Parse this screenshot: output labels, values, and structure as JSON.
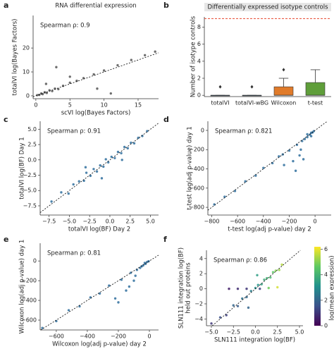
{
  "chart_data": [
    {
      "type": "scatter",
      "panel": "a",
      "title": "RNA differential expression",
      "annotation": "Spearman ρ: 0.9",
      "xlabel": "scVI log(Bayes Factors)",
      "ylabel": "totalVI log(Bayes Factors)",
      "color": "#555555",
      "diagonal": true,
      "x": [
        0.2,
        0.5,
        0.8,
        1,
        1.3,
        1.6,
        2,
        2.4,
        2.8,
        3.3,
        4,
        5,
        6,
        7,
        8.5,
        10,
        12,
        14,
        16,
        17.5,
        3,
        5,
        1.5,
        9,
        11
      ],
      "values": [
        0.3,
        0.4,
        1,
        0.7,
        1.5,
        1.2,
        2.3,
        2.0,
        3,
        2.8,
        4.2,
        5.5,
        6.3,
        7.4,
        9,
        10.6,
        12.8,
        15,
        17,
        18.5,
        12,
        8,
        5,
        3,
        1
      ],
      "xlim": [
        -0.4,
        18
      ],
      "xticks": [
        0,
        5,
        10,
        15
      ],
      "ylim": [
        -1.2,
        33.6
      ],
      "yticks": [
        0,
        10,
        20
      ]
    },
    {
      "type": "box",
      "panel": "b",
      "title": "Differentially expressed isotype controls",
      "ylabel": "Number of isotype controls",
      "categories": [
        "totalVI",
        "totalVI-wBG",
        "Wilcoxon",
        "t-test"
      ],
      "colors": [
        "#3a75b0",
        "#3a75b0",
        "#e07b2a",
        "#5f9e3a"
      ],
      "boxes": [
        {
          "min": 0,
          "q1": 0,
          "median": 0,
          "q3": 0,
          "max": 0,
          "outliers": [
            1
          ]
        },
        {
          "min": 0,
          "q1": 0,
          "median": 0,
          "q3": 0,
          "max": 0,
          "outliers": [
            1
          ]
        },
        {
          "min": 0,
          "q1": 0,
          "median": 0,
          "q3": 1,
          "max": 2,
          "outliers": [
            3
          ]
        },
        {
          "min": 0,
          "q1": 0,
          "median": 0,
          "q3": 1.5,
          "max": 3,
          "outliers": []
        }
      ],
      "reference_line": {
        "value": 9,
        "color": "#e8452c"
      },
      "ylim": [
        -0.15,
        9.2
      ],
      "yticks": [
        0,
        2,
        4,
        6,
        8
      ]
    },
    {
      "type": "scatter",
      "panel": "c",
      "annotation": "Spearman ρ: 0.91",
      "xlabel": "totalVI log(BF) Day 2",
      "ylabel": "totalVI log(BF) Day 1",
      "color": "#2f6e9e",
      "diagonal": true,
      "x": [
        -7.2,
        -6,
        -5.1,
        -4.5,
        -3.8,
        -3.2,
        -2.9,
        -2.4,
        -2,
        -1.6,
        -1.2,
        -0.8,
        -0.5,
        -0.2,
        0.2,
        0.6,
        1,
        1.4,
        1.8,
        2.2,
        2.6,
        3,
        3.5,
        4,
        4.6,
        -3,
        -1,
        1.5
      ],
      "values": [
        -6.8,
        -5.3,
        -5.5,
        -4,
        -3.5,
        -3.4,
        -2.1,
        -2.6,
        -1.5,
        -1.9,
        -0.9,
        -1.1,
        0.1,
        -0.4,
        0.5,
        0.3,
        1.3,
        1.1,
        2.1,
        1.9,
        2.8,
        2.7,
        3.6,
        3.9,
        4.7,
        -1.2,
        -3,
        0
      ],
      "xlim": [
        -8.6,
        6
      ],
      "xticks": [
        {
          "value": -7.5,
          "label": "−7.5"
        },
        {
          "value": -5,
          "label": "−5.0"
        },
        {
          "value": -2.5,
          "label": "−2.5"
        },
        {
          "value": 0,
          "label": "0.0"
        },
        {
          "value": 2.5,
          "label": "2.5"
        },
        {
          "value": 5,
          "label": "5.0"
        }
      ],
      "ylim": [
        -9,
        6.3
      ],
      "yticks": [
        {
          "value": 5,
          "label": "5.0"
        },
        {
          "value": 2.5,
          "label": "2.5"
        },
        {
          "value": 0,
          "label": "0.0"
        },
        {
          "value": -2.5,
          "label": "−2.5"
        },
        {
          "value": -5,
          "label": "−5.0"
        },
        {
          "value": -7.5,
          "label": "−7.5"
        }
      ]
    },
    {
      "type": "scatter",
      "panel": "d",
      "annotation": "Spearman ρ: 0.821",
      "xlabel": "t-test log(adj p-value) day 2",
      "ylabel": "t-test log(adj p-value) day 1",
      "color": "#2f6e9e",
      "diagonal": true,
      "x": [
        -780,
        -700,
        -620,
        -540,
        -460,
        -400,
        -330,
        -280,
        -240,
        -200,
        -170,
        -140,
        -120,
        -100,
        -80,
        -60,
        -40,
        -30,
        -20,
        -10,
        -150,
        -110,
        -90,
        -250,
        -60,
        -30
      ],
      "values": [
        -770,
        -690,
        -630,
        -530,
        -470,
        -390,
        -340,
        -270,
        -360,
        -210,
        -320,
        -150,
        -260,
        -110,
        -90,
        -70,
        -45,
        -25,
        -22,
        -8,
        -420,
        -200,
        -300,
        -250,
        -40,
        -60
      ],
      "xlim": [
        -830,
        125
      ],
      "xticks": [
        {
          "value": -800,
          "label": "−800"
        },
        {
          "value": -600,
          "label": "−600"
        },
        {
          "value": -400,
          "label": "−400"
        },
        {
          "value": -200,
          "label": "−200"
        },
        0
      ],
      "ylim": [
        -880,
        95
      ],
      "yticks": [
        0,
        {
          "value": -200,
          "label": "−200"
        },
        {
          "value": -400,
          "label": "−400"
        },
        {
          "value": -600,
          "label": "−600"
        },
        {
          "value": -800,
          "label": "−800"
        }
      ]
    },
    {
      "type": "scatter",
      "panel": "e",
      "annotation": "Spearman ρ: 0.81",
      "xlabel": "Wilcoxon log(adj p-value) day 2",
      "ylabel": "Wilcoxon log(adj p-value) day 1",
      "color": "#2f6e9e",
      "diagonal": true,
      "x": [
        -690,
        -600,
        -520,
        -450,
        -380,
        -320,
        -260,
        -220,
        -180,
        -150,
        -120,
        -100,
        -80,
        -60,
        -40,
        -25,
        -15,
        -5,
        -200,
        -130,
        -90,
        -50,
        -30
      ],
      "values": [
        -680,
        -610,
        -500,
        -460,
        -370,
        -330,
        -250,
        -380,
        -190,
        -300,
        -120,
        -200,
        -90,
        -70,
        -45,
        -30,
        -10,
        -3,
        -420,
        -260,
        -150,
        -55,
        -20
      ],
      "xlim": [
        -704,
        59
      ],
      "xticks": [
        {
          "value": -600,
          "label": "−600"
        },
        {
          "value": -400,
          "label": "−400"
        },
        {
          "value": -200,
          "label": "−200"
        },
        0
      ],
      "ylim": [
        -700,
        180
      ],
      "yticks": [
        0,
        {
          "value": -200,
          "label": "−200"
        },
        {
          "value": -400,
          "label": "−400"
        },
        {
          "value": -600,
          "label": "−600"
        }
      ]
    },
    {
      "type": "scatter",
      "panel": "f",
      "annotation": "Spearman ρ: 0.86",
      "xlabel": "SLN111 integration log(BF)",
      "ylabel": [
        "SLN111 integration log(BF)",
        "held out proteins"
      ],
      "diagonal": true,
      "colormap": [
        "#440154",
        "#3b528b",
        "#21918c",
        "#5ec962",
        "#fde725"
      ],
      "colorbar": {
        "label": "log(mean expression)",
        "lim": [
          0,
          6.2
        ],
        "ticks": [
          0,
          2,
          4,
          6
        ]
      },
      "x": [
        -5,
        -4,
        -3.3,
        -2.5,
        -2,
        -1.5,
        -1,
        -0.5,
        0,
        0.3,
        0.7,
        1,
        1.3,
        1.7,
        2,
        2.3,
        2.7,
        3,
        -3,
        -2,
        -1,
        0.5,
        1.5,
        2.5,
        -0.8,
        0.2
      ],
      "values": [
        -4.6,
        -3.8,
        -3.5,
        -2.2,
        -2.3,
        -1.3,
        -1.1,
        -0.3,
        0.1,
        0.5,
        0.6,
        1.2,
        1.4,
        1.5,
        2.2,
        2.4,
        2.5,
        3.2,
        0,
        0,
        0,
        0,
        0.1,
        0.2,
        -2.5,
        1.8
      ],
      "color_values": [
        1,
        1.5,
        1.2,
        2,
        1.8,
        2.3,
        2.1,
        2.6,
        3,
        3.2,
        3.5,
        3.8,
        4,
        4.2,
        4.6,
        5,
        5.2,
        5.5,
        0.5,
        0.8,
        1,
        1.3,
        4.8,
        5.8,
        2,
        3.4
      ],
      "xlim": [
        -5.56,
        5.4
      ],
      "xticks": [
        {
          "value": -5,
          "label": "−5.0"
        },
        {
          "value": -2.5,
          "label": "−2.5"
        },
        {
          "value": 0,
          "label": "0.0"
        },
        {
          "value": 2.5,
          "label": "2.5"
        },
        {
          "value": 5,
          "label": "5.0"
        }
      ],
      "ylim": [
        -4.9,
        5.1
      ],
      "yticks": [
        4,
        2,
        0,
        {
          "value": -2,
          "label": "−2"
        },
        {
          "value": -4,
          "label": "−4"
        }
      ]
    }
  ]
}
